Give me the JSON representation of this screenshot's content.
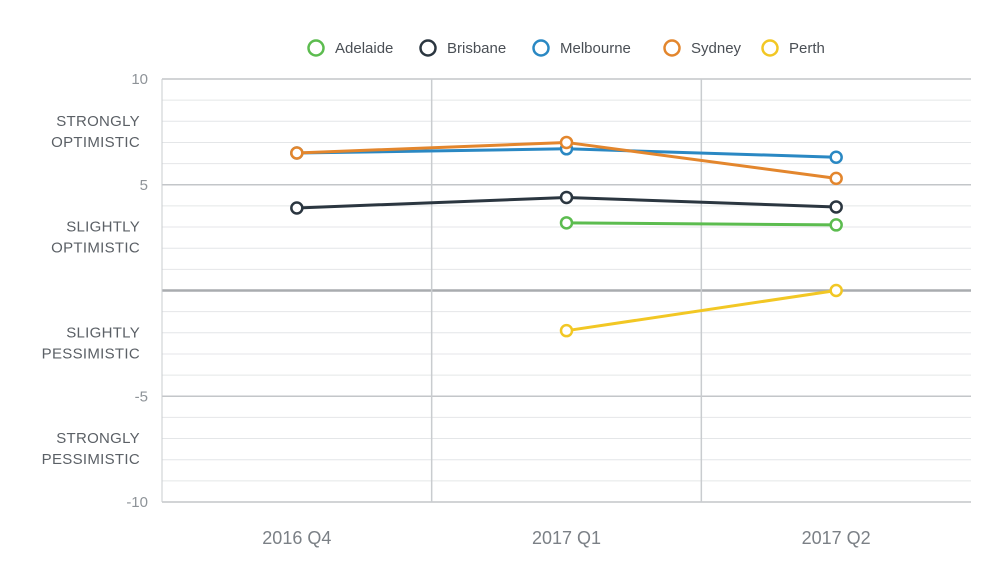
{
  "chart_data": {
    "type": "line",
    "categories": [
      "2016 Q4",
      "2017 Q1",
      "2017 Q2"
    ],
    "series": [
      {
        "name": "Adelaide",
        "color": "#5cbc4f",
        "values": [
          null,
          3.2,
          3.1
        ]
      },
      {
        "name": "Brisbane",
        "color": "#2b3640",
        "values": [
          3.9,
          4.4,
          3.95
        ]
      },
      {
        "name": "Melbourne",
        "color": "#2a88c3",
        "values": [
          6.5,
          6.7,
          6.3
        ]
      },
      {
        "name": "Sydney",
        "color": "#e3862d",
        "values": [
          6.5,
          7.0,
          5.3
        ]
      },
      {
        "name": "Perth",
        "color": "#f2c724",
        "values": [
          null,
          -1.9,
          0
        ]
      }
    ],
    "ylim": [
      -10,
      10
    ],
    "y_ticks": [
      {
        "value": 10,
        "label": "10"
      },
      {
        "value": 5,
        "label": "5"
      },
      {
        "value": -5,
        "label": "-5"
      },
      {
        "value": -10,
        "label": "-10"
      }
    ],
    "zones": [
      {
        "lines": [
          "STRONGLY",
          "OPTIMISTIC"
        ],
        "center": 7.5
      },
      {
        "lines": [
          "SLIGHTLY",
          "OPTIMISTIC"
        ],
        "center": 2.5
      },
      {
        "lines": [
          "SLIGHTLY",
          "PESSIMISTIC"
        ],
        "center": -2.5
      },
      {
        "lines": [
          "STRONGLY",
          "PESSIMISTIC"
        ],
        "center": -7.5
      }
    ],
    "grid": true,
    "legend": "top-center",
    "title": "",
    "xlabel": "",
    "ylabel": ""
  }
}
